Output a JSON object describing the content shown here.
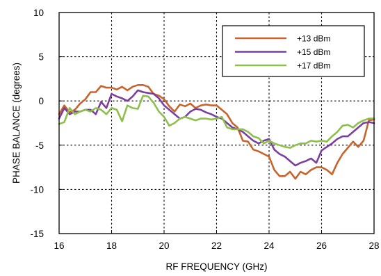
{
  "chart_data": {
    "type": "line",
    "xlabel": "RF FREQUENCY (GHz)",
    "ylabel": "PHASE BALANCE  (degrees)",
    "xlim": [
      16,
      28
    ],
    "ylim": [
      -15,
      10
    ],
    "xticks": [
      "16",
      "18",
      "20",
      "22",
      "24",
      "26",
      "28"
    ],
    "yticks": [
      "10",
      "5",
      "0",
      "-5",
      "-10",
      "-15"
    ],
    "grid": "dotted",
    "legend_position": "top-right",
    "series": [
      {
        "name": "+13 dBm",
        "color": "#c8642a",
        "x": [
          16.0,
          16.2,
          16.4,
          16.6,
          16.8,
          17.0,
          17.2,
          17.4,
          17.6,
          17.8,
          18.0,
          18.2,
          18.4,
          18.6,
          18.8,
          19.0,
          19.2,
          19.4,
          19.6,
          19.8,
          20.0,
          20.2,
          20.4,
          20.6,
          20.8,
          21.0,
          21.2,
          21.4,
          21.6,
          21.8,
          22.0,
          22.2,
          22.4,
          22.6,
          22.8,
          23.0,
          23.2,
          23.4,
          23.6,
          23.8,
          24.0,
          24.2,
          24.4,
          24.6,
          24.8,
          25.0,
          25.2,
          25.4,
          25.6,
          25.8,
          26.0,
          26.2,
          26.4,
          26.6,
          26.8,
          27.0,
          27.2,
          27.4,
          27.6,
          27.8,
          28.0
        ],
        "y": [
          -1.5,
          -0.5,
          -1.3,
          -1.0,
          -0.3,
          0.2,
          1.0,
          1.0,
          1.7,
          1.5,
          1.5,
          1.3,
          1.6,
          1.2,
          1.6,
          1.8,
          1.8,
          1.6,
          0.8,
          0.6,
          0.2,
          -0.6,
          -1.2,
          -0.4,
          -0.6,
          -0.3,
          -0.8,
          -0.5,
          -0.4,
          -0.5,
          -0.5,
          -1.0,
          -1.5,
          -2.5,
          -3.0,
          -4.5,
          -4.6,
          -5.5,
          -5.7,
          -6.0,
          -6.3,
          -7.8,
          -8.5,
          -8.5,
          -8.0,
          -8.8,
          -8.0,
          -8.3,
          -7.8,
          -7.5,
          -7.5,
          -7.8,
          -8.3,
          -7.0,
          -6.0,
          -5.3,
          -4.6,
          -5.2,
          -4.5,
          -2.2,
          -2.1
        ]
      },
      {
        "name": "+15 dBm",
        "color": "#7b3fa0",
        "x": [
          16.0,
          16.2,
          16.4,
          16.6,
          16.8,
          17.0,
          17.2,
          17.4,
          17.6,
          17.8,
          18.0,
          18.2,
          18.4,
          18.6,
          18.8,
          19.0,
          19.2,
          19.4,
          19.6,
          19.8,
          20.0,
          20.2,
          20.4,
          20.6,
          20.8,
          21.0,
          21.2,
          21.4,
          21.6,
          21.8,
          22.0,
          22.2,
          22.4,
          22.6,
          22.8,
          23.0,
          23.2,
          23.4,
          23.6,
          23.8,
          24.0,
          24.2,
          24.4,
          24.6,
          24.8,
          25.0,
          25.2,
          25.4,
          25.6,
          25.8,
          26.0,
          26.2,
          26.4,
          26.6,
          26.8,
          27.0,
          27.2,
          27.4,
          27.6,
          27.8,
          28.0
        ],
        "y": [
          -2.0,
          -0.8,
          -1.5,
          -1.2,
          -1.2,
          -1.0,
          -1.0,
          -1.5,
          -0.1,
          -0.8,
          0.8,
          0.5,
          0.3,
          0.0,
          0.5,
          1.2,
          1.0,
          0.9,
          0.8,
          0.3,
          -0.5,
          -1.0,
          -1.5,
          -2.0,
          -1.8,
          -1.2,
          -0.9,
          -1.0,
          -1.3,
          -1.5,
          -1.8,
          -2.0,
          -2.5,
          -3.0,
          -3.2,
          -3.5,
          -4.0,
          -4.5,
          -4.8,
          -4.5,
          -4.3,
          -5.5,
          -6.0,
          -6.3,
          -6.8,
          -7.3,
          -7.0,
          -6.8,
          -6.5,
          -7.0,
          -5.6,
          -5.2,
          -4.8,
          -4.3,
          -4.0,
          -4.0,
          -3.5,
          -3.0,
          -2.5,
          -2.4,
          -2.5
        ]
      },
      {
        "name": "+17 dBm",
        "color": "#8cc04a",
        "x": [
          16.0,
          16.2,
          16.4,
          16.6,
          16.8,
          17.0,
          17.2,
          17.4,
          17.6,
          17.8,
          18.0,
          18.2,
          18.4,
          18.6,
          18.8,
          19.0,
          19.2,
          19.4,
          19.6,
          19.8,
          20.0,
          20.2,
          20.4,
          20.6,
          20.8,
          21.0,
          21.2,
          21.4,
          21.6,
          21.8,
          22.0,
          22.2,
          22.4,
          22.6,
          22.8,
          23.0,
          23.2,
          23.4,
          23.6,
          23.8,
          24.0,
          24.2,
          24.4,
          24.6,
          24.8,
          25.0,
          25.2,
          25.4,
          25.6,
          25.8,
          26.0,
          26.2,
          26.4,
          26.6,
          26.8,
          27.0,
          27.2,
          27.4,
          27.6,
          27.8,
          28.0
        ],
        "y": [
          -2.6,
          -2.4,
          -0.8,
          -1.5,
          -1.2,
          -1.0,
          -1.2,
          -0.8,
          -1.0,
          -1.5,
          -0.8,
          -1.0,
          -2.3,
          -0.5,
          -0.8,
          -0.9,
          0.6,
          0.5,
          -0.2,
          -1.2,
          -1.8,
          -2.8,
          -2.5,
          -2.0,
          -1.8,
          -2.0,
          -2.2,
          -2.0,
          -2.0,
          -2.1,
          -2.0,
          -1.8,
          -3.0,
          -3.2,
          -3.2,
          -3.2,
          -3.5,
          -4.0,
          -4.2,
          -4.8,
          -4.5,
          -4.8,
          -5.0,
          -5.2,
          -5.3,
          -5.0,
          -4.8,
          -4.8,
          -4.5,
          -4.6,
          -4.5,
          -4.6,
          -4.0,
          -3.5,
          -2.8,
          -2.7,
          -3.0,
          -2.5,
          -2.2,
          -2.0,
          -2.0
        ]
      }
    ]
  }
}
